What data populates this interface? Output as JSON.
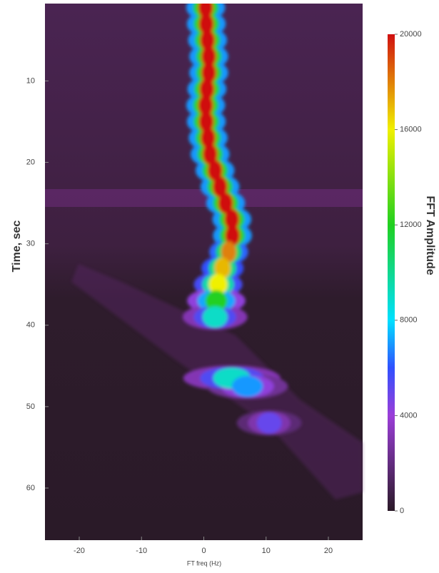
{
  "chart_data": {
    "type": "heatmap",
    "x_label": "FT freq (Hz)",
    "y_label": "Time, sec",
    "colorbar_label": "FFT Amplitude",
    "xlim": [
      -25.5,
      25.5
    ],
    "ylim": [
      0.5,
      66.4
    ],
    "xticks": [
      -20,
      -10,
      0,
      10,
      20
    ],
    "yticks": [
      10,
      20,
      30,
      40,
      50,
      60
    ],
    "clim": [
      0,
      20000
    ],
    "cticks": [
      0,
      4000,
      8000,
      12000,
      16000,
      20000
    ],
    "points": {
      "time": [
        1,
        3,
        5,
        7,
        9,
        11,
        13,
        15,
        17,
        19,
        21,
        23,
        25,
        27,
        29,
        31,
        33,
        35,
        37,
        39,
        46.5,
        47.5,
        52
      ],
      "freq": [
        0.3,
        0.4,
        0.6,
        0.8,
        0.8,
        0.5,
        0.3,
        0.4,
        0.7,
        1.0,
        1.8,
        2.6,
        3.5,
        4.5,
        4.6,
        4.0,
        3.0,
        2.3,
        2.0,
        1.8,
        4.5,
        7,
        10.5
      ],
      "values": [
        20000,
        20000,
        20000,
        20000,
        20000,
        20000,
        20000,
        20000,
        20000,
        20000,
        20000,
        20000,
        20000,
        20000,
        20000,
        18000,
        17000,
        16000,
        12000,
        9000,
        9000,
        7000,
        5000
      ],
      "widths": [
        1.2,
        1.2,
        1.2,
        1.2,
        1.2,
        1.2,
        1.2,
        1.2,
        1.2,
        1.2,
        1.2,
        1.2,
        1.2,
        1.2,
        1.2,
        1.2,
        1.3,
        1.5,
        1.8,
        2,
        3,
        2.5,
        2
      ]
    }
  }
}
